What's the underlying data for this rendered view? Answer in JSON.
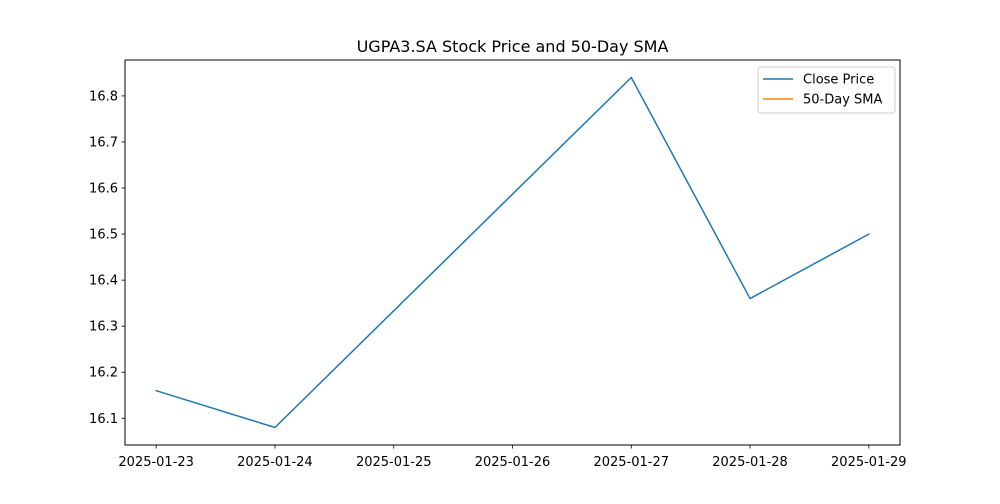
{
  "chart_data": {
    "type": "line",
    "title": "UGPA3.SA Stock Price and 50-Day SMA",
    "xlabel": "",
    "ylabel": "",
    "x": [
      "2025-01-23",
      "2025-01-24",
      "2025-01-25",
      "2025-01-26",
      "2025-01-27",
      "2025-01-28",
      "2025-01-29"
    ],
    "series": [
      {
        "name": "Close Price",
        "color": "#1f77b4",
        "points": [
          {
            "x": "2025-01-23",
            "y": 16.16
          },
          {
            "x": "2025-01-24",
            "y": 16.08
          },
          {
            "x": "2025-01-27",
            "y": 16.84
          },
          {
            "x": "2025-01-28",
            "y": 16.36
          },
          {
            "x": "2025-01-29",
            "y": 16.5
          }
        ]
      },
      {
        "name": "50-Day SMA",
        "color": "#ff7f0e",
        "points": []
      }
    ],
    "xticks": [
      "2025-01-23",
      "2025-01-24",
      "2025-01-25",
      "2025-01-26",
      "2025-01-27",
      "2025-01-28",
      "2025-01-29"
    ],
    "yticks": [
      "16.1",
      "16.2",
      "16.3",
      "16.4",
      "16.5",
      "16.6",
      "16.7",
      "16.8"
    ],
    "ylim": [
      16.042,
      16.878
    ],
    "xlim": [
      "2025-01-22T17:42",
      "2025-01-29T06:18"
    ],
    "grid": false,
    "legend_position": "upper right"
  }
}
